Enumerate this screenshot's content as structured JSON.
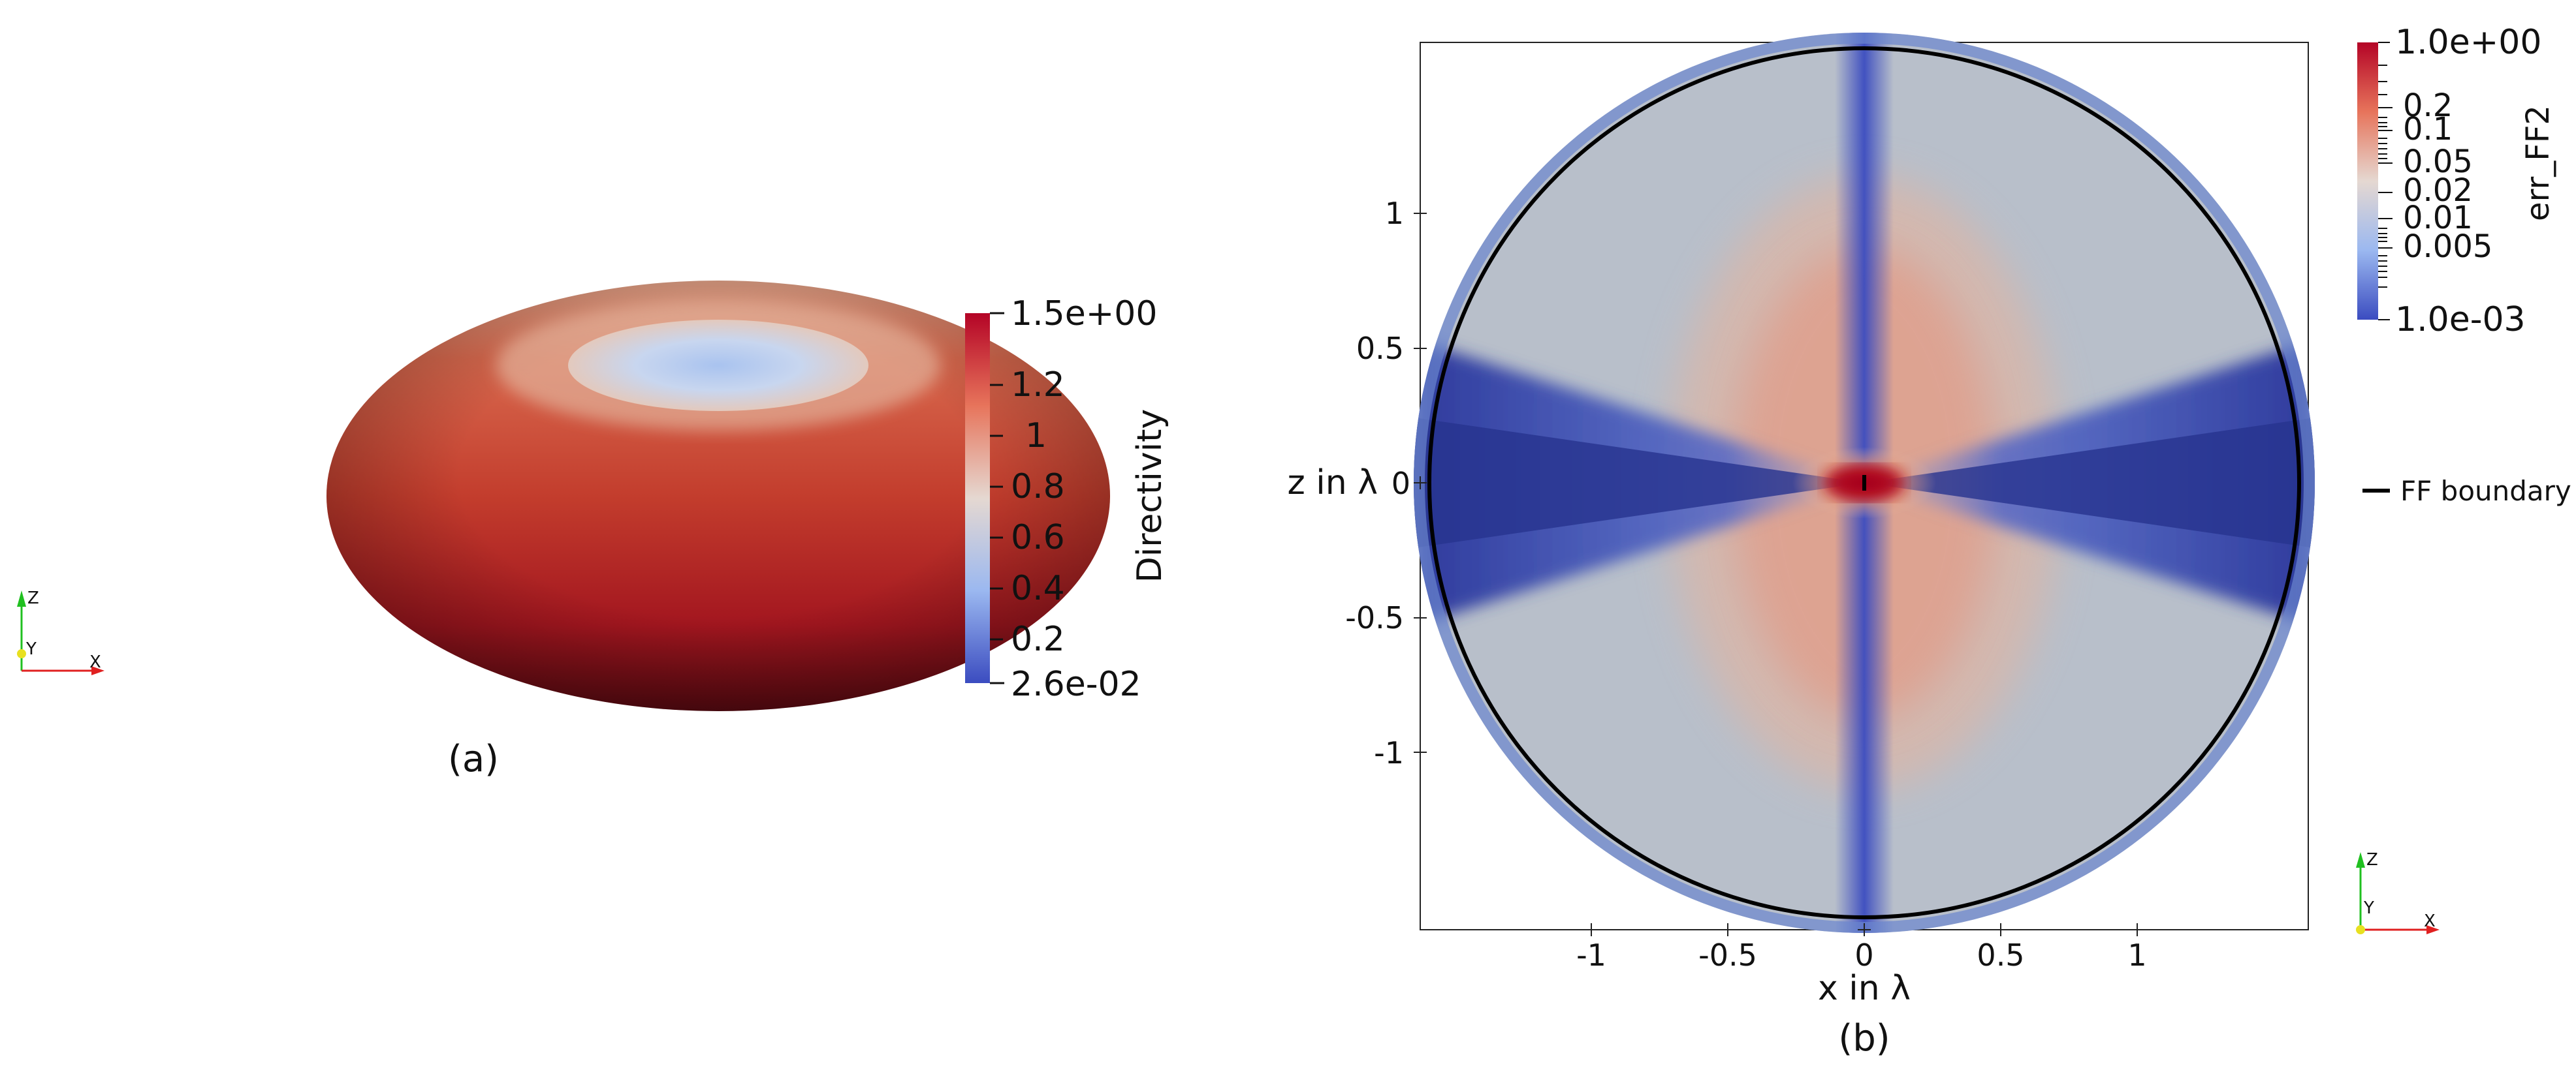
{
  "panel_a": {
    "caption": "(a)",
    "colorbar": {
      "title": "Directivity",
      "top_label": "1.5e+00",
      "bottom_label": "2.6e-02",
      "tick_labels": [
        "1.2",
        "1",
        "0.8",
        "0.6",
        "0.4",
        "0.2"
      ]
    },
    "orientation_axes": {
      "z": "Z",
      "y": "Y",
      "x": "X"
    }
  },
  "panel_b": {
    "caption": "(b)",
    "x_axis_title": "x in λ",
    "y_axis_title": "z in λ",
    "x_tick_labels": [
      "-1",
      "-0.5",
      "0",
      "0.5",
      "1"
    ],
    "y_tick_labels": [
      "1",
      "0.5",
      "0",
      "-0.5",
      "-1"
    ],
    "colorbar": {
      "title": "err_FF2",
      "top_label": "1.0e+00",
      "bottom_label": "1.0e-03",
      "tick_labels": [
        "0.2",
        "0.1",
        "0.05",
        "0.02",
        "0.01",
        "0.005"
      ]
    },
    "legend": {
      "label": "FF boundary"
    },
    "orientation_axes": {
      "z": "Z",
      "y": "Y",
      "x": "X"
    }
  },
  "colors": {
    "high": "#b40426",
    "mid": "#dddddd",
    "low": "#3b4cc0",
    "boundary": "#000000"
  }
}
